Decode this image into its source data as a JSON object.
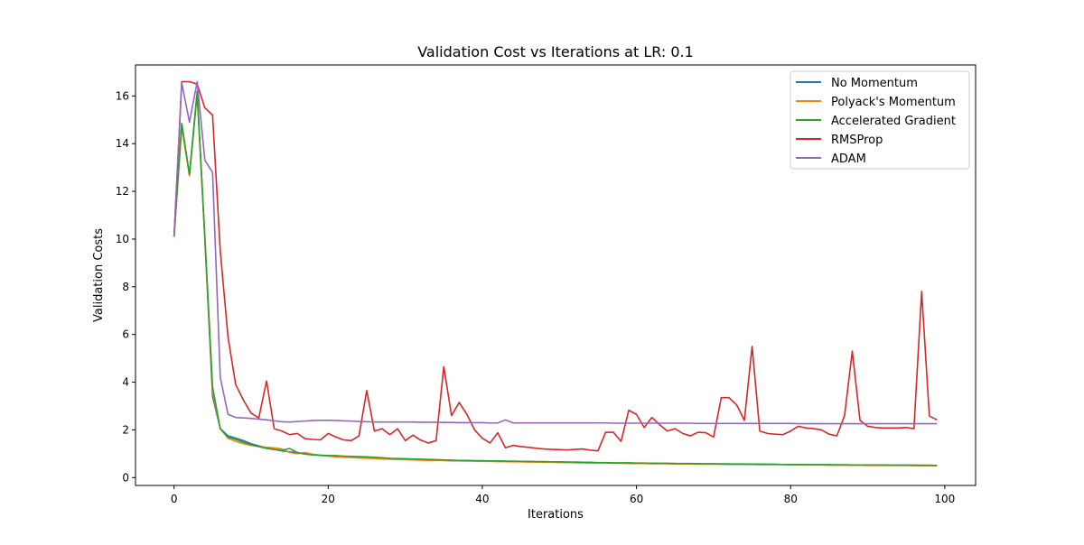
{
  "chart_data": {
    "type": "line",
    "title": "Validation Cost vs Iterations at LR: 0.1",
    "xlabel": "Iterations",
    "ylabel": "Validation Costs",
    "xlim": [
      -5,
      104
    ],
    "ylim": [
      -0.33,
      17.3
    ],
    "xticks": [
      0,
      20,
      40,
      60,
      80,
      100
    ],
    "yticks": [
      0,
      2,
      4,
      6,
      8,
      10,
      12,
      14,
      16
    ],
    "grid": false,
    "legend_position": "top-right",
    "series": [
      {
        "name": "No Momentum",
        "color": "#1f77b4",
        "y": [
          10.1,
          14.8,
          12.7,
          16.2,
          10.0,
          3.4,
          2.05,
          1.75,
          1.65,
          1.55,
          1.42,
          1.33,
          1.25,
          1.18,
          1.12,
          1.08,
          1.04,
          1.0,
          0.97,
          0.94,
          0.92,
          0.9,
          0.89,
          0.88,
          0.87,
          0.86,
          0.84,
          0.82,
          0.8,
          0.79,
          0.78,
          0.77,
          0.76,
          0.75,
          0.74,
          0.73,
          0.72,
          0.71,
          0.71,
          0.7,
          0.7,
          0.69,
          0.69,
          0.68,
          0.68,
          0.67,
          0.67,
          0.66,
          0.66,
          0.65,
          0.65,
          0.64,
          0.64,
          0.63,
          0.63,
          0.62,
          0.62,
          0.61,
          0.61,
          0.61,
          0.6,
          0.6,
          0.6,
          0.59,
          0.59,
          0.59,
          0.58,
          0.58,
          0.58,
          0.57,
          0.57,
          0.57,
          0.57,
          0.56,
          0.56,
          0.56,
          0.56,
          0.55,
          0.55,
          0.55,
          0.55,
          0.54,
          0.54,
          0.54,
          0.54,
          0.54,
          0.53,
          0.53,
          0.53,
          0.53,
          0.53,
          0.52,
          0.52,
          0.52,
          0.52,
          0.52,
          0.52,
          0.51,
          0.51,
          0.51
        ]
      },
      {
        "name": "Polyack's Momentum",
        "color": "#ff7f0e",
        "y": [
          10.1,
          14.7,
          12.65,
          16.1,
          10.0,
          3.6,
          2.05,
          1.65,
          1.52,
          1.42,
          1.35,
          1.3,
          1.27,
          1.25,
          1.2,
          1.05,
          1.0,
          1.05,
          0.98,
          0.93,
          0.9,
          0.87,
          0.85,
          0.84,
          0.82,
          0.81,
          0.8,
          0.78,
          0.77,
          0.76,
          0.75,
          0.74,
          0.73,
          0.72,
          0.72,
          0.71,
          0.7,
          0.7,
          0.69,
          0.69,
          0.68,
          0.68,
          0.67,
          0.67,
          0.66,
          0.66,
          0.65,
          0.65,
          0.64,
          0.64,
          0.63,
          0.63,
          0.62,
          0.62,
          0.61,
          0.61,
          0.61,
          0.6,
          0.6,
          0.59,
          0.59,
          0.59,
          0.58,
          0.58,
          0.58,
          0.57,
          0.57,
          0.57,
          0.56,
          0.56,
          0.56,
          0.56,
          0.55,
          0.55,
          0.55,
          0.55,
          0.54,
          0.54,
          0.54,
          0.54,
          0.53,
          0.53,
          0.53,
          0.53,
          0.53,
          0.52,
          0.52,
          0.52,
          0.52,
          0.52,
          0.51,
          0.51,
          0.51,
          0.51,
          0.51,
          0.51,
          0.5,
          0.5,
          0.5,
          0.5
        ]
      },
      {
        "name": "Accelerated Gradient",
        "color": "#2ca02c",
        "y": [
          10.1,
          14.85,
          12.7,
          16.1,
          10.1,
          3.8,
          2.05,
          1.7,
          1.6,
          1.48,
          1.38,
          1.3,
          1.22,
          1.18,
          1.14,
          1.22,
          1.05,
          0.98,
          0.95,
          0.93,
          0.92,
          0.92,
          0.9,
          0.89,
          0.88,
          0.87,
          0.85,
          0.83,
          0.81,
          0.8,
          0.79,
          0.78,
          0.77,
          0.76,
          0.75,
          0.74,
          0.73,
          0.72,
          0.72,
          0.71,
          0.71,
          0.7,
          0.7,
          0.69,
          0.69,
          0.68,
          0.68,
          0.67,
          0.67,
          0.66,
          0.66,
          0.65,
          0.65,
          0.64,
          0.64,
          0.63,
          0.63,
          0.62,
          0.62,
          0.62,
          0.61,
          0.61,
          0.6,
          0.6,
          0.6,
          0.59,
          0.59,
          0.59,
          0.58,
          0.58,
          0.58,
          0.57,
          0.57,
          0.57,
          0.57,
          0.56,
          0.56,
          0.56,
          0.56,
          0.55,
          0.55,
          0.55,
          0.55,
          0.54,
          0.54,
          0.54,
          0.54,
          0.54,
          0.53,
          0.53,
          0.53,
          0.53,
          0.53,
          0.52,
          0.52,
          0.52,
          0.52,
          0.52,
          0.52,
          0.51
        ]
      },
      {
        "name": "RMSProp",
        "color": "#d62728",
        "y": [
          10.1,
          16.6,
          16.6,
          16.5,
          15.5,
          15.2,
          9.5,
          5.9,
          3.9,
          3.25,
          2.7,
          2.5,
          4.05,
          2.05,
          1.95,
          1.8,
          1.85,
          1.63,
          1.6,
          1.58,
          1.85,
          1.7,
          1.58,
          1.55,
          1.75,
          3.65,
          1.95,
          2.05,
          1.8,
          2.05,
          1.55,
          1.78,
          1.57,
          1.45,
          1.55,
          4.65,
          2.6,
          3.15,
          2.65,
          2.0,
          1.65,
          1.45,
          1.88,
          1.25,
          1.35,
          1.3,
          1.27,
          1.23,
          1.2,
          1.18,
          1.17,
          1.16,
          1.18,
          1.2,
          1.15,
          1.12,
          1.9,
          1.9,
          1.52,
          2.82,
          2.65,
          2.1,
          2.52,
          2.22,
          1.95,
          2.05,
          1.85,
          1.75,
          1.9,
          1.88,
          1.7,
          3.35,
          3.35,
          3.05,
          2.4,
          5.5,
          1.95,
          1.85,
          1.82,
          1.8,
          1.95,
          2.15,
          2.08,
          2.05,
          2.0,
          1.82,
          1.75,
          2.6,
          5.3,
          2.4,
          2.15,
          2.1,
          2.08,
          2.08,
          2.08,
          2.1,
          2.05,
          7.8,
          2.58,
          2.42
        ]
      },
      {
        "name": "ADAM",
        "color": "#9467bd",
        "y": [
          10.1,
          16.55,
          14.9,
          16.6,
          13.3,
          12.8,
          4.2,
          2.65,
          2.52,
          2.5,
          2.48,
          2.45,
          2.42,
          2.38,
          2.34,
          2.33,
          2.35,
          2.37,
          2.39,
          2.4,
          2.4,
          2.39,
          2.38,
          2.37,
          2.35,
          2.34,
          2.33,
          2.33,
          2.33,
          2.33,
          2.33,
          2.33,
          2.32,
          2.32,
          2.32,
          2.31,
          2.31,
          2.3,
          2.3,
          2.3,
          2.3,
          2.29,
          2.29,
          2.42,
          2.29,
          2.29,
          2.29,
          2.29,
          2.29,
          2.29,
          2.29,
          2.29,
          2.29,
          2.29,
          2.29,
          2.29,
          2.29,
          2.28,
          2.28,
          2.28,
          2.28,
          2.28,
          2.28,
          2.28,
          2.28,
          2.28,
          2.28,
          2.28,
          2.27,
          2.27,
          2.27,
          2.27,
          2.27,
          2.27,
          2.27,
          2.27,
          2.27,
          2.27,
          2.27,
          2.27,
          2.27,
          2.26,
          2.26,
          2.26,
          2.26,
          2.26,
          2.26,
          2.26,
          2.26,
          2.26,
          2.26,
          2.26,
          2.26,
          2.26,
          2.26,
          2.26,
          2.26,
          2.26,
          2.26,
          2.26
        ]
      }
    ]
  }
}
